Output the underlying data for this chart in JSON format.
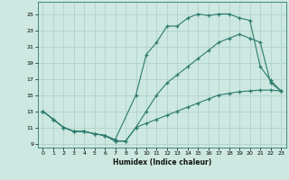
{
  "xlabel": "Humidex (Indice chaleur)",
  "bg_color": "#cce8e0",
  "line_color": "#2d7a6e",
  "grid_color": "#aacec6",
  "xlim": [
    -0.5,
    23.5
  ],
  "ylim": [
    8.5,
    26.5
  ],
  "xticks": [
    0,
    1,
    2,
    3,
    4,
    5,
    6,
    7,
    8,
    9,
    10,
    11,
    12,
    13,
    14,
    15,
    16,
    17,
    18,
    19,
    20,
    21,
    22,
    23
  ],
  "yticks": [
    9,
    11,
    13,
    15,
    17,
    19,
    21,
    23,
    25
  ],
  "line1_x": [
    0,
    1,
    2,
    3,
    4,
    5,
    6,
    7,
    9,
    10,
    11,
    12,
    13,
    14,
    15,
    16,
    17,
    18,
    19,
    20,
    21,
    22,
    23
  ],
  "line1_y": [
    13,
    12,
    11,
    10.5,
    10.5,
    10.2,
    10,
    9.5,
    15,
    20,
    21.5,
    23.5,
    23.5,
    24.5,
    25,
    24.8,
    25,
    25,
    24.5,
    24.2,
    18.5,
    16.8,
    15.5
  ],
  "line2_x": [
    0,
    1,
    2,
    3,
    4,
    5,
    6,
    7,
    8,
    9,
    10,
    11,
    12,
    13,
    14,
    15,
    16,
    17,
    18,
    19,
    20,
    21,
    22,
    23
  ],
  "line2_y": [
    13,
    12,
    11,
    10.5,
    10.5,
    10.2,
    10,
    9.3,
    9.3,
    11,
    13,
    15,
    16.5,
    17.5,
    18.5,
    19.5,
    20.5,
    21.5,
    22,
    22.5,
    22,
    21.5,
    16.5,
    15.5
  ],
  "line3_x": [
    0,
    1,
    2,
    3,
    4,
    5,
    6,
    7,
    8,
    9,
    10,
    11,
    12,
    13,
    14,
    15,
    16,
    17,
    18,
    19,
    20,
    21,
    22,
    23
  ],
  "line3_y": [
    13,
    12,
    11,
    10.5,
    10.5,
    10.2,
    10,
    9.3,
    9.3,
    11,
    11.5,
    12,
    12.5,
    13,
    13.5,
    14,
    14.5,
    15,
    15.2,
    15.4,
    15.5,
    15.6,
    15.6,
    15.5
  ]
}
